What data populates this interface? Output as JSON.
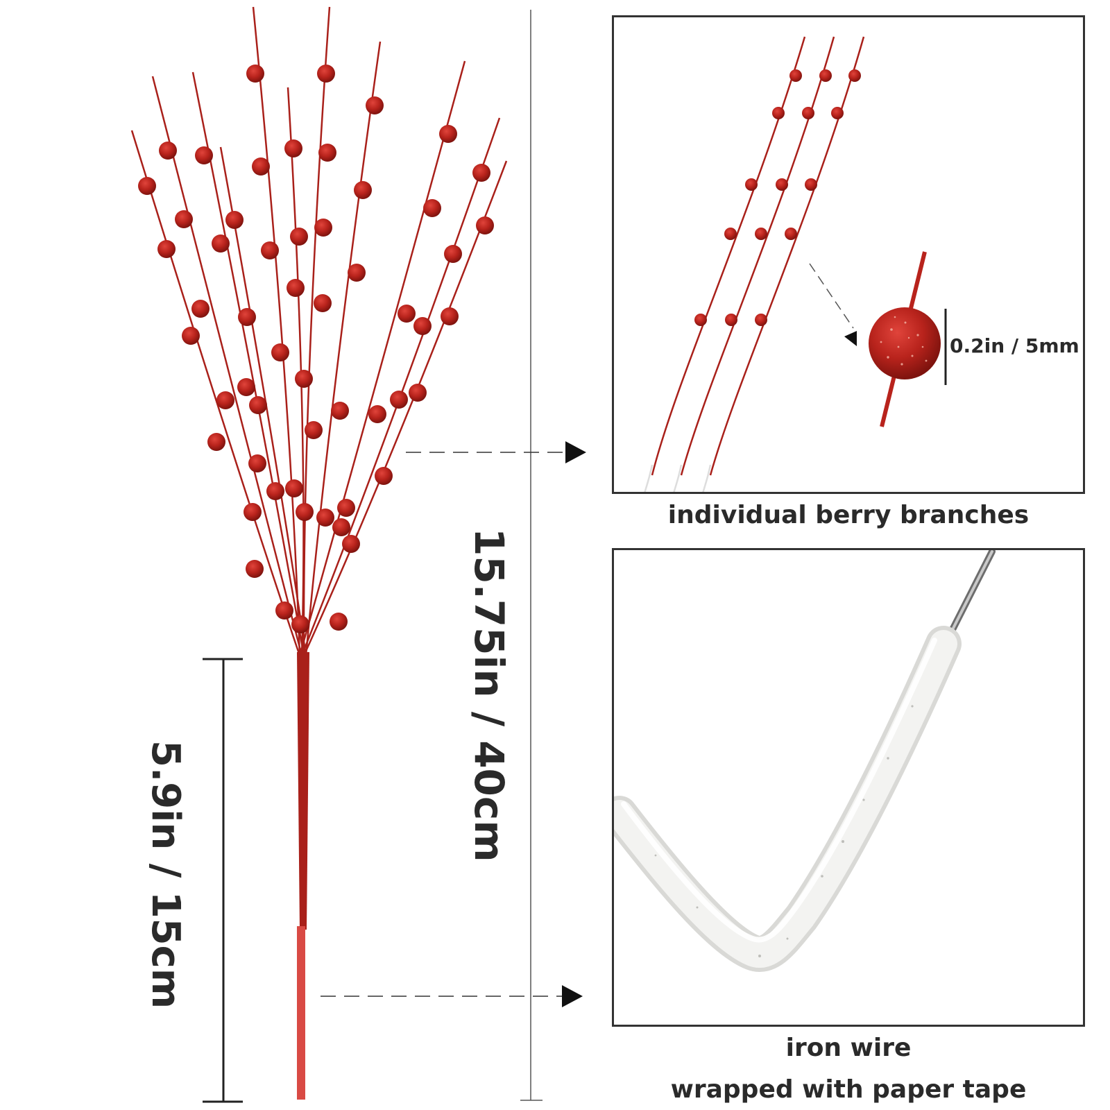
{
  "labels": {
    "total_height": "15.75in / 40cm",
    "stem_length": "5.9in / 15cm",
    "berry_size": "0.2in / 5mm",
    "panel1_caption": "individual berry branches",
    "panel2_caption_line1": "iron wire",
    "panel2_caption_line2": "wrapped with paper tape"
  },
  "colors": {
    "berry": "#b8231c",
    "berry_dark": "#8e1610",
    "stem": "#a9201a",
    "tape_stem": "#d94a44",
    "line": "#222222",
    "panel_border": "#333333",
    "paper_tape": "#f3f3f1"
  }
}
